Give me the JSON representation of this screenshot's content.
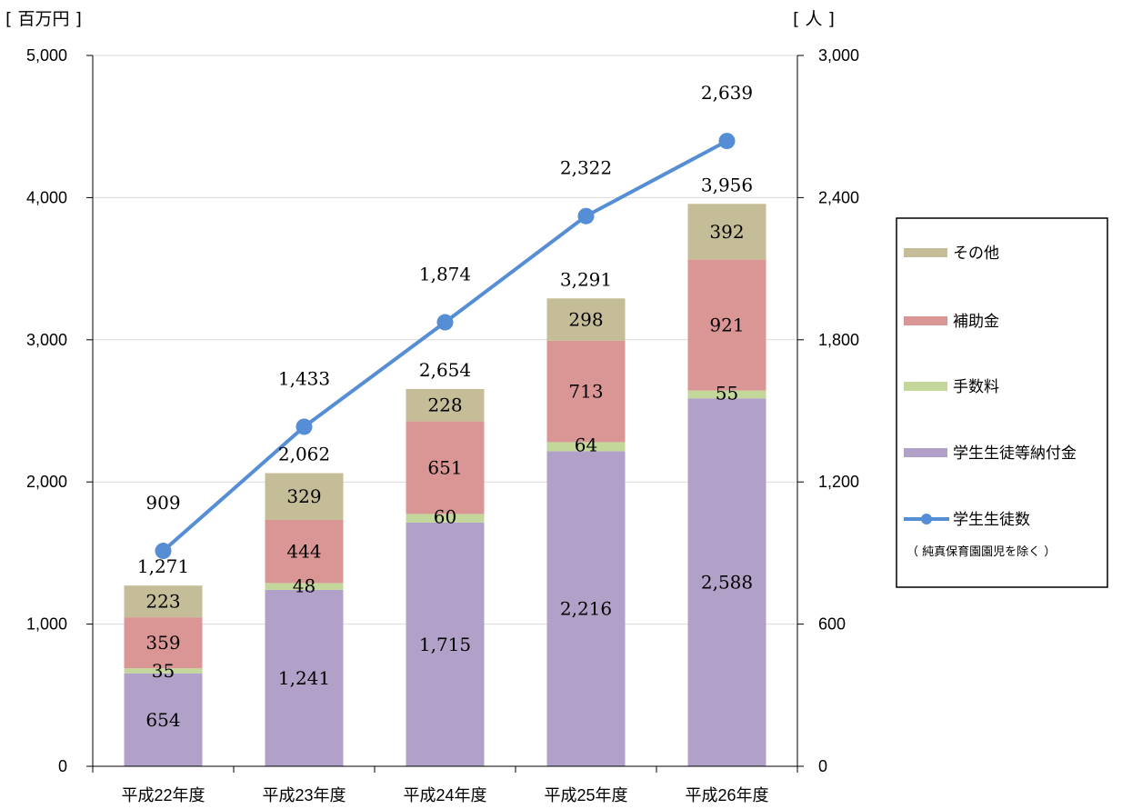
{
  "chart_data": {
    "type": "bar",
    "stacked": true,
    "left_unit": "[ 百万円 ]",
    "right_unit": "[ 人 ]",
    "categories": [
      "平成22年度",
      "平成23年度",
      "平成24年度",
      "平成25年度",
      "平成26年度"
    ],
    "ylim": [
      0,
      5000
    ],
    "y_ticks": [
      "0",
      "1,000",
      "2,000",
      "3,000",
      "4,000",
      "5,000"
    ],
    "y2lim": [
      0,
      3000
    ],
    "y2_ticks": [
      "0",
      "600",
      "1,200",
      "1,800",
      "2,400",
      "3,000"
    ],
    "grid": true,
    "legend_position": "right",
    "series": [
      {
        "name": "学生生徒等納付金",
        "color": "#b1a0c7",
        "values": [
          654,
          1241,
          1715,
          2216,
          2588
        ],
        "labels": [
          "654",
          "1,241",
          "1,715",
          "2,216",
          "2,588"
        ]
      },
      {
        "name": "手数料",
        "color": "#c4d79b",
        "values": [
          35,
          48,
          60,
          64,
          55
        ],
        "labels": [
          "35",
          "48",
          "60",
          "64",
          "55"
        ]
      },
      {
        "name": "補助金",
        "color": "#da9694",
        "values": [
          359,
          444,
          651,
          713,
          921
        ],
        "labels": [
          "359",
          "444",
          "651",
          "713",
          "921"
        ]
      },
      {
        "name": "その他",
        "color": "#c4bd97",
        "values": [
          223,
          329,
          228,
          298,
          392
        ],
        "labels": [
          "223",
          "329",
          "228",
          "298",
          "392"
        ]
      }
    ],
    "totals": {
      "values": [
        1271,
        2062,
        2654,
        3291,
        3956
      ],
      "labels": [
        "1,271",
        "2,062",
        "2,654",
        "3,291",
        "3,956"
      ]
    },
    "line": {
      "name": "学生生徒数",
      "note": "（ 純真保育園園児を除く ）",
      "axis": "right",
      "color": "#558ed5",
      "values": [
        909,
        1433,
        1874,
        2322,
        2639
      ],
      "labels": [
        "909",
        "1,433",
        "1,874",
        "2,322",
        "2,639"
      ]
    },
    "legend_order": [
      "その他",
      "補助金",
      "手数料",
      "学生生徒等納付金",
      "学生生徒数"
    ]
  }
}
